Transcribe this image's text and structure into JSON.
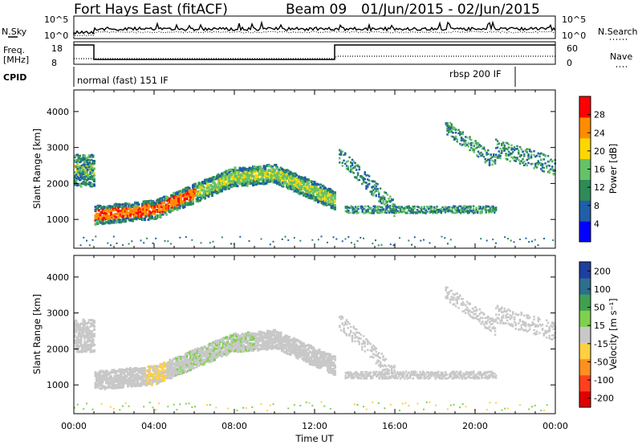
{
  "header": {
    "title": "Fort Hays East (fitACF)",
    "beam": "Beam 09",
    "date_range": "01/Jun/2015 - 02/Jun/2015"
  },
  "top_panels": {
    "nsky_label": "N.Sky",
    "nsearch_label": "N.Search",
    "nsky_ticks": [
      "10^5",
      "10^0"
    ],
    "nsearch_ticks": [
      "10^5",
      "10^0"
    ],
    "freq_label_1": "Freq.",
    "freq_label_2": "[MHz]",
    "freq_ticks": [
      "18",
      "8"
    ],
    "nave_label": "Nave",
    "nave_ticks": [
      "60",
      "0"
    ],
    "cpid_label": "CPID",
    "cpid_modes": [
      "normal (fast) 151 IF",
      "rbsp 200 IF"
    ]
  },
  "chart_data": [
    {
      "type": "heatmap",
      "title": "Power",
      "xlabel": "Time UT",
      "ylabel": "Slant Range [km]",
      "x_ticks": [
        "00:00",
        "04:00",
        "08:00",
        "12:00",
        "16:00",
        "20:00",
        "00:00"
      ],
      "y_ticks": [
        1000,
        2000,
        3000,
        4000
      ],
      "ylim": [
        200,
        4600
      ],
      "colorbar_label": "Power [dB]",
      "colorbar_ticks": [
        4,
        8,
        12,
        16,
        20,
        24,
        28
      ],
      "colorbar_colors": [
        "#0000ff",
        "#1f5fa8",
        "#2e8b57",
        "#66c266",
        "#ffd700",
        "#ff8c00",
        "#ff0000"
      ]
    },
    {
      "type": "heatmap",
      "title": "Velocity",
      "xlabel": "Time UT",
      "ylabel": "Slant Range [km]",
      "x_ticks": [
        "00:00",
        "04:00",
        "08:00",
        "12:00",
        "16:00",
        "20:00",
        "00:00"
      ],
      "y_ticks": [
        1000,
        2000,
        3000,
        4000
      ],
      "ylim": [
        200,
        4600
      ],
      "colorbar_label": "Velocity [m s⁻¹]",
      "colorbar_ticks": [
        200,
        100,
        50,
        15,
        -15,
        -50,
        -100,
        -200
      ],
      "colorbar_colors": [
        "#1e3fa0",
        "#2e6e8e",
        "#3fa04f",
        "#7fd04f",
        "#c8c8c8",
        "#ffd040",
        "#ff9020",
        "#ff4020",
        "#e00000"
      ]
    }
  ],
  "axis": {
    "x_title": "Time UT"
  }
}
